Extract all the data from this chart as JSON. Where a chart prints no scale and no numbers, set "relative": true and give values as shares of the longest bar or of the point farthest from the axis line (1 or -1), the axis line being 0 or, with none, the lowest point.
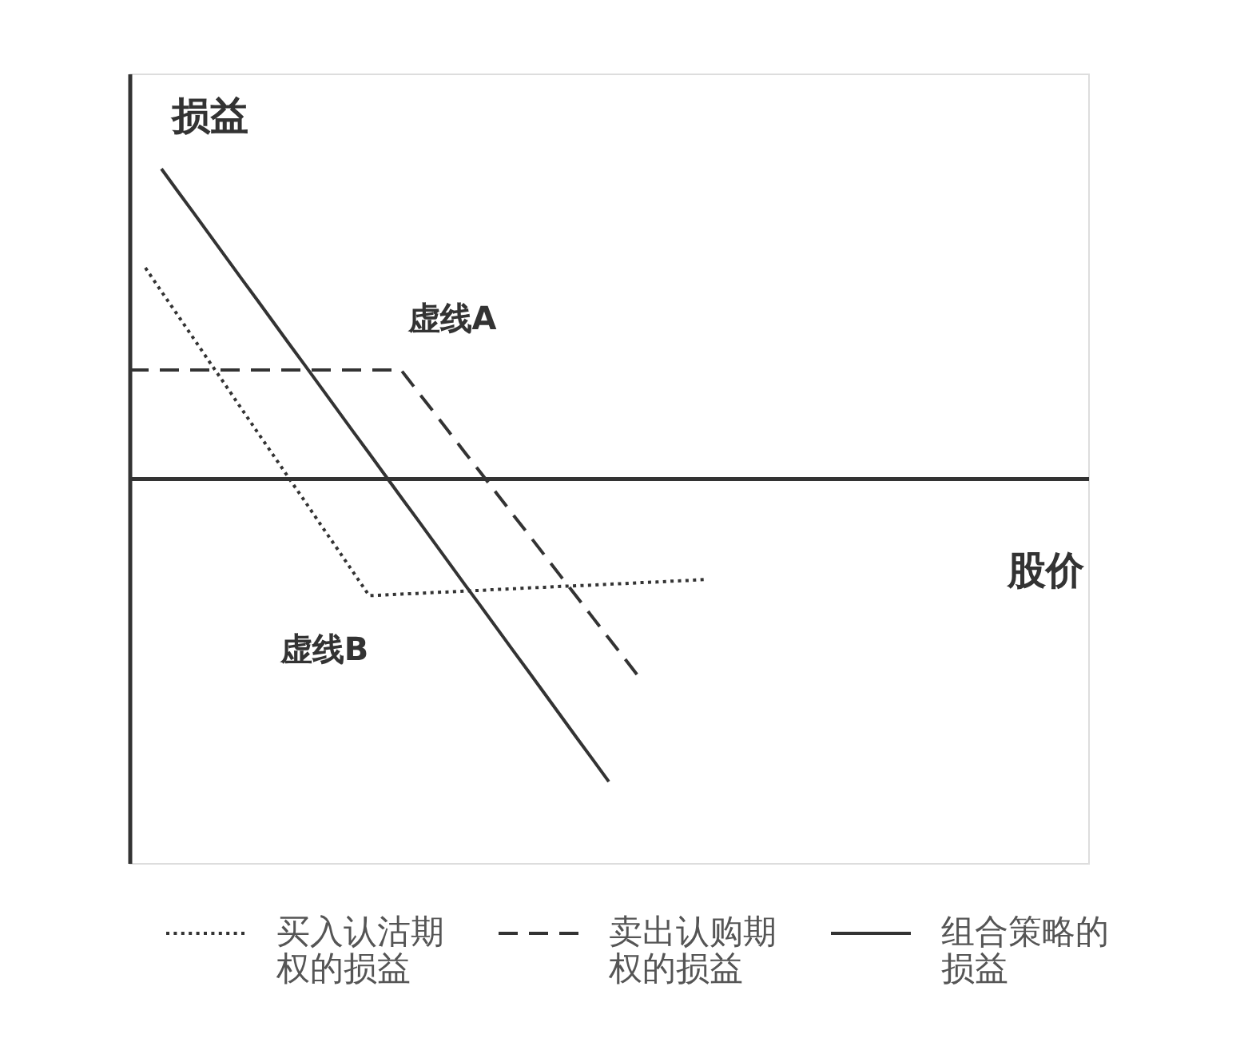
{
  "chart_data": {
    "type": "line",
    "relative": true,
    "xlabel": "股价",
    "ylabel": "损益",
    "legend": "bottom",
    "categories": [
      null,
      null,
      null,
      null,
      null,
      null,
      null,
      null,
      null,
      null,
      null,
      null,
      null,
      null,
      null,
      null,
      null,
      null,
      null,
      null,
      null,
      null,
      null,
      null,
      null,
      null,
      null,
      null,
      null,
      null,
      null,
      null,
      null,
      null,
      null,
      null,
      null,
      null,
      null,
      null,
      null,
      null,
      null,
      null,
      null,
      null,
      null,
      null,
      null,
      null,
      null,
      null,
      null,
      null,
      null,
      null,
      null,
      null,
      null,
      null,
      null
    ],
    "series": [
      {
        "name": "买入认沽期权的损益",
        "color": "#333333",
        "line_style": "dotted",
        "values": [
          null,
          0.68,
          0.604,
          0.529,
          0.453,
          0.377,
          0.302,
          0.226,
          0.15,
          0.075,
          -0.001,
          -0.076,
          -0.152,
          -0.227,
          -0.303,
          -0.379,
          -0.377,
          -0.374,
          -0.372,
          -0.369,
          -0.367,
          -0.364,
          -0.362,
          -0.359,
          -0.357,
          -0.354,
          -0.352,
          -0.349,
          -0.347,
          -0.345,
          -0.342,
          -0.34,
          -0.337,
          -0.335,
          -0.332,
          -0.33,
          -0.327,
          null,
          null,
          null,
          null,
          null,
          null,
          null,
          null,
          null,
          null,
          null,
          null,
          null,
          null,
          null,
          null,
          null,
          null,
          null,
          null,
          null,
          null,
          null,
          null
        ]
      },
      {
        "name": "卖出认购期权的损益",
        "color": "#333333",
        "line_style": "dashed",
        "values": [
          0.35,
          0.35,
          0.35,
          0.35,
          0.35,
          0.35,
          0.35,
          0.35,
          0.35,
          0.35,
          0.35,
          0.35,
          0.35,
          0.35,
          0.35,
          0.35,
          0.35,
          0.35,
          0.283,
          0.217,
          0.15,
          0.083,
          0.017,
          -0.05,
          -0.117,
          -0.183,
          -0.25,
          -0.317,
          -0.383,
          -0.45,
          -0.517,
          -0.583,
          -0.65,
          null,
          null,
          null,
          null,
          null,
          null,
          null,
          null,
          null,
          null,
          null,
          null,
          null,
          null,
          null,
          null,
          null,
          null,
          null,
          null,
          null,
          null,
          null,
          null,
          null,
          null,
          null,
          null
        ]
      },
      {
        "name": "组合策略的损益",
        "color": "#333333",
        "line_style": "solid",
        "values": [
          null,
          null,
          1.0,
          0.929,
          0.859,
          0.788,
          0.717,
          0.646,
          0.576,
          0.505,
          0.434,
          0.364,
          0.293,
          0.222,
          0.151,
          0.081,
          0.01,
          -0.061,
          -0.131,
          -0.202,
          -0.273,
          -0.344,
          -0.414,
          -0.485,
          -0.556,
          -0.626,
          -0.697,
          -0.768,
          -0.839,
          -0.909,
          -0.98,
          null,
          null,
          null,
          null,
          null,
          null,
          null,
          null,
          null,
          null,
          null,
          null,
          null,
          null,
          null,
          null,
          null,
          null,
          null,
          null,
          null,
          null,
          null,
          null,
          null,
          null,
          null,
          null,
          null,
          null
        ]
      }
    ],
    "annotations": [
      "虚线A",
      "虚线B"
    ]
  }
}
